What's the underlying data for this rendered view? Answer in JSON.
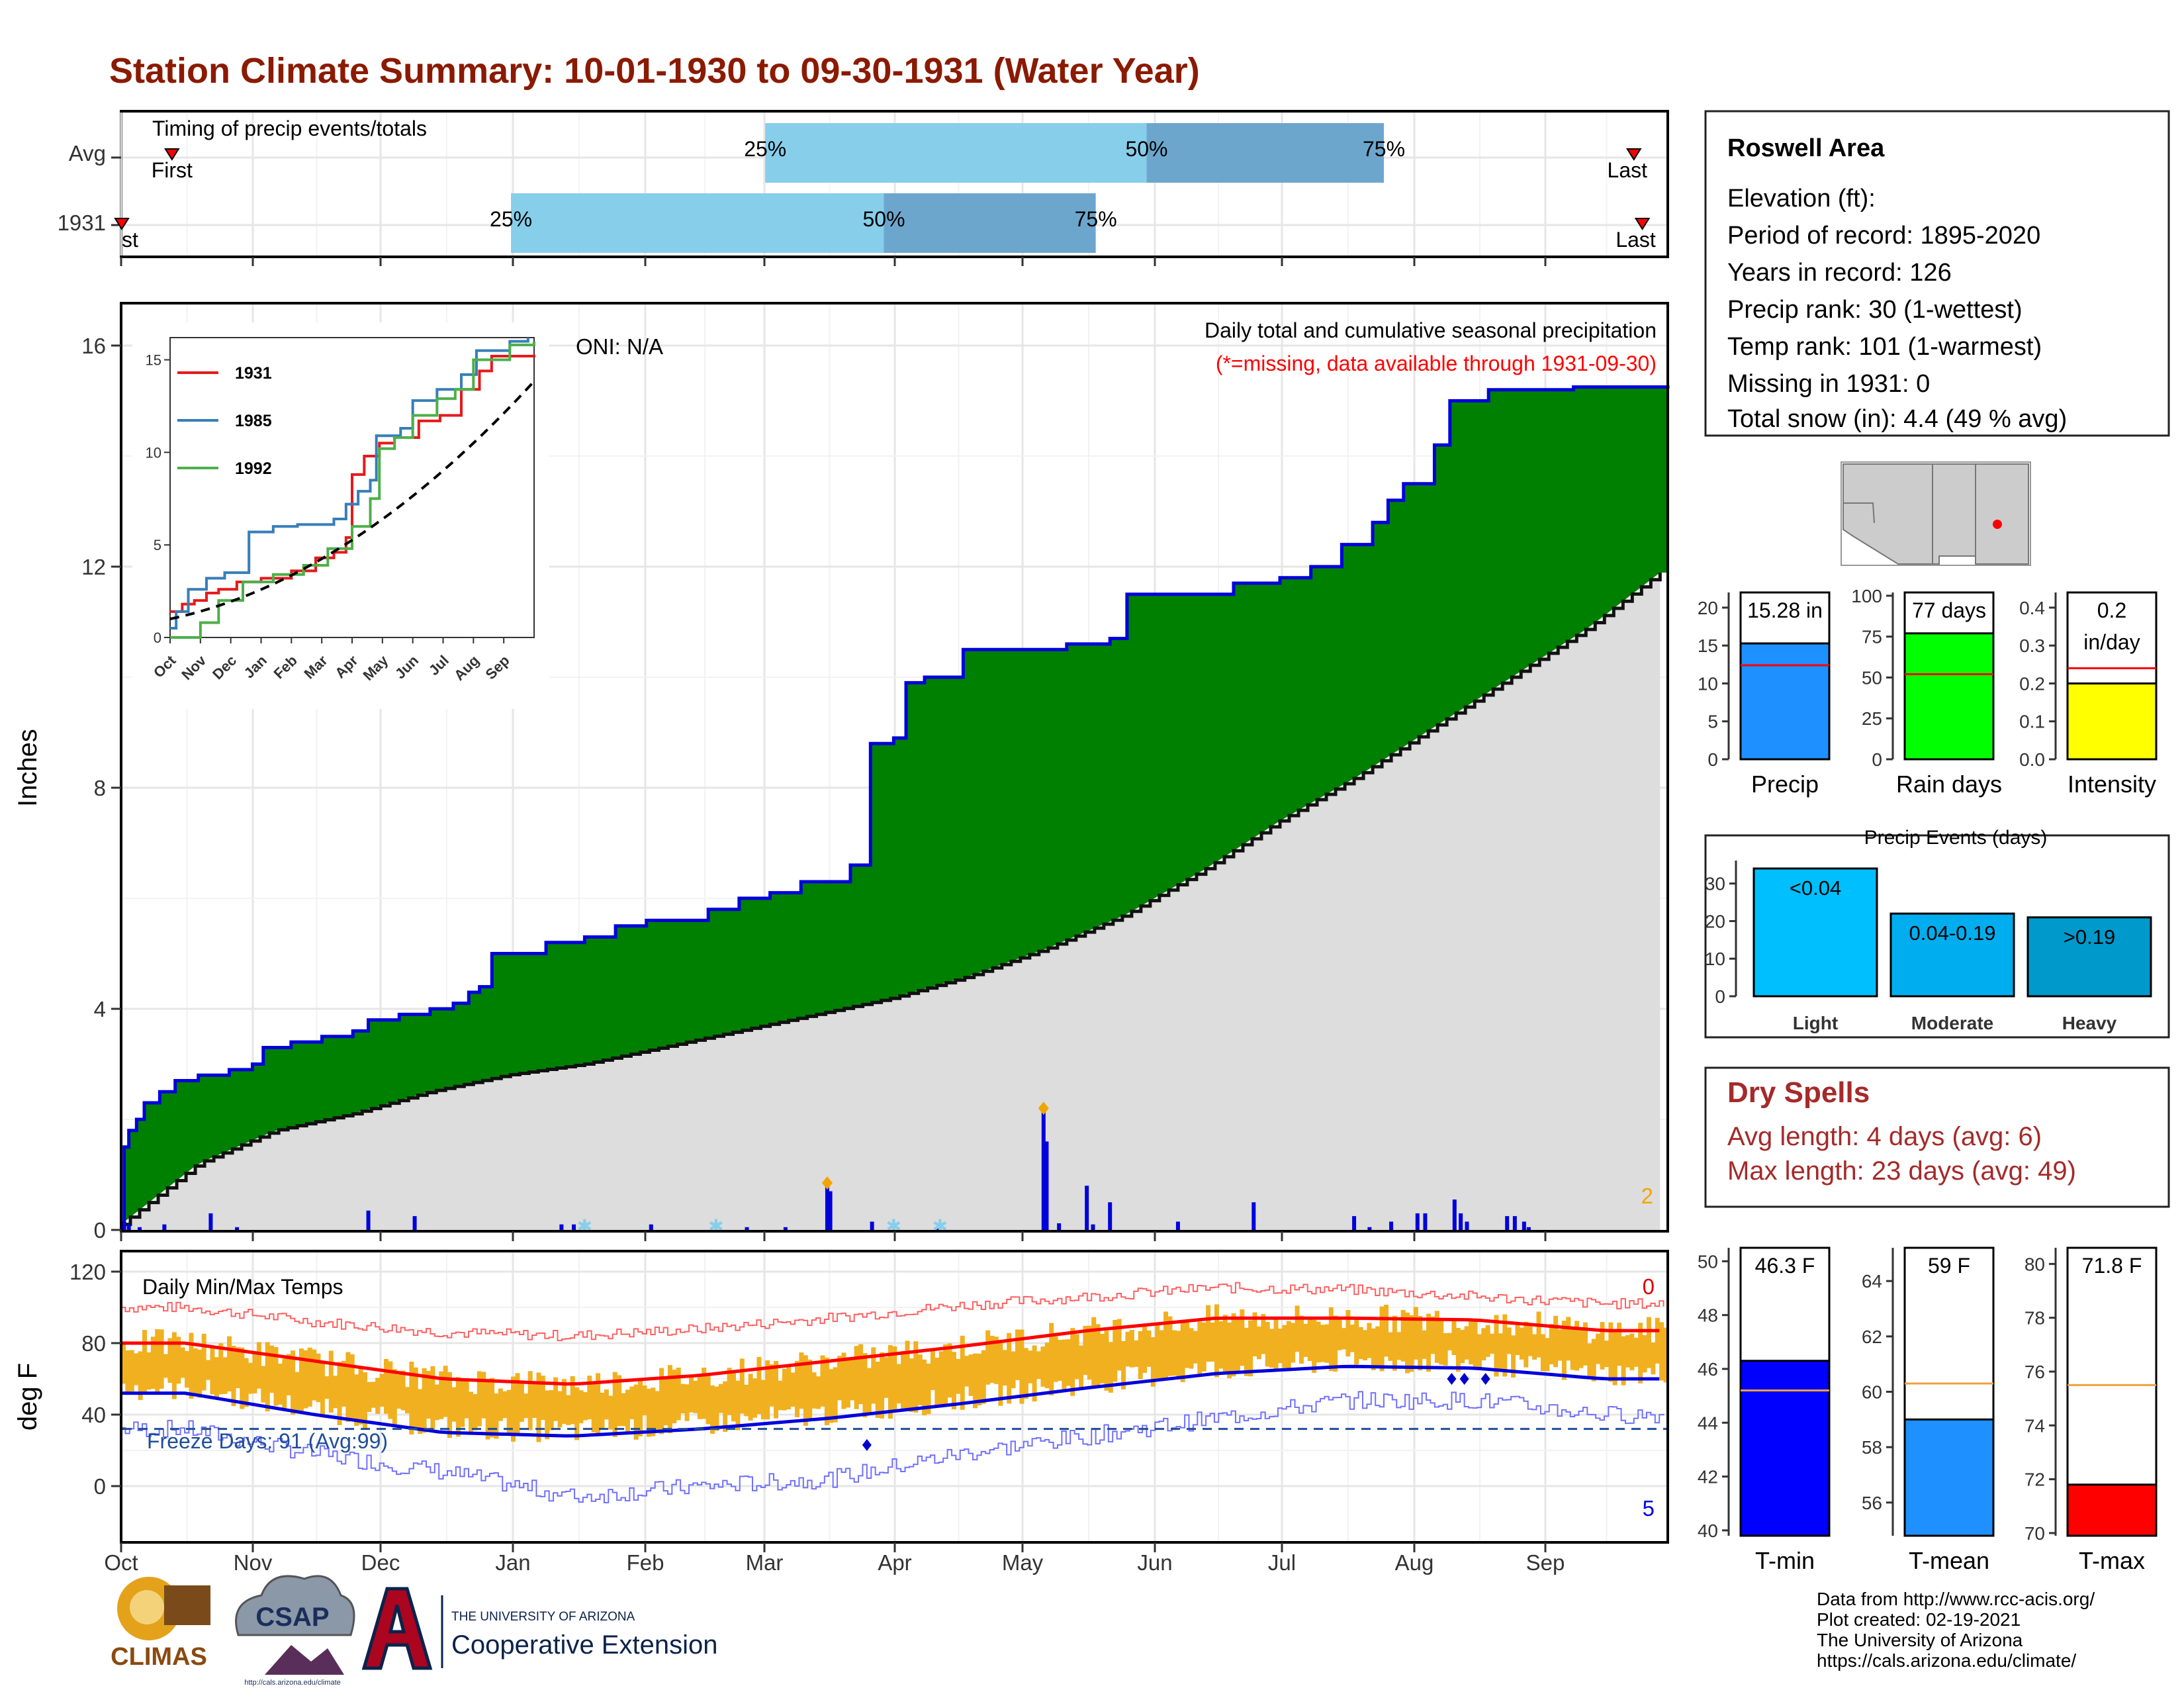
{
  "title": "Station Climate Summary: 10-01-1930 to 09-30-1931 (Water Year)",
  "colors": {
    "title": "#8B1A00",
    "light_blue": "#87CEEB",
    "mid_blue": "#6CA6CD",
    "green": "#008000",
    "gray_fill": "#DDDDDD",
    "dry_red": "#A52A2A",
    "orange": "#F0A500"
  },
  "timing": {
    "label": "Timing of precip events/totals",
    "rows": [
      {
        "name": "Avg",
        "first": "First",
        "last": "Last",
        "p25": "25%",
        "p50": "50%",
        "p75": "75%",
        "first_day": 12,
        "p25_day": 152,
        "p50_day": 242,
        "p75_day": 298,
        "last_day": 357
      },
      {
        "name": "1931",
        "first": "First",
        "last": "Last",
        "p25": "25%",
        "p50": "50%",
        "p75": "75%",
        "first_day": 0,
        "p25_day": 92,
        "p50_day": 180,
        "p75_day": 230,
        "last_day": 359
      }
    ]
  },
  "precip_panel": {
    "ylabel": "Inches",
    "yticks": [
      0,
      4,
      8,
      12,
      16
    ],
    "oni": "ONI: N/A",
    "legend_title": "Daily total and cumulative seasonal precipitation",
    "missing_note": "(*=missing, data available through 1931-09-30)",
    "corner_value": "2"
  },
  "inset": {
    "yticks": [
      "0",
      "5",
      "10",
      "15"
    ],
    "months": [
      "Oct",
      "Nov",
      "Dec",
      "Jan",
      "Feb",
      "Mar",
      "Apr",
      "May",
      "Jun",
      "Jul",
      "Aug",
      "Sep"
    ],
    "series": [
      {
        "name": "1931",
        "color": "#E41A1C"
      },
      {
        "name": "1985",
        "color": "#377EB8"
      },
      {
        "name": "1992",
        "color": "#4DAF4A"
      }
    ]
  },
  "temp_panel": {
    "ylabel": "deg F",
    "yticks": [
      0,
      40,
      80,
      120
    ],
    "label": "Daily Min/Max Temps",
    "freeze": "Freeze Days: 91 (Avg:99)",
    "top_right": "0",
    "bottom_right": "5"
  },
  "months": [
    "Oct",
    "Nov",
    "Dec",
    "Jan",
    "Feb",
    "Mar",
    "Apr",
    "May",
    "Jun",
    "Jul",
    "Aug",
    "Sep"
  ],
  "chart_data": {
    "type": "area",
    "x_unit": "water-year day (Oct 1 = 0)",
    "cumulative_1931": [
      [
        0,
        0.0
      ],
      [
        2,
        1.5
      ],
      [
        5,
        1.8
      ],
      [
        10,
        2.0
      ],
      [
        15,
        2.3
      ],
      [
        25,
        2.5
      ],
      [
        35,
        2.7
      ],
      [
        50,
        2.8
      ],
      [
        70,
        2.9
      ],
      [
        85,
        3.0
      ],
      [
        92,
        3.3
      ],
      [
        110,
        3.4
      ],
      [
        130,
        3.5
      ],
      [
        150,
        3.6
      ],
      [
        160,
        3.8
      ],
      [
        180,
        3.9
      ],
      [
        200,
        4.0
      ],
      [
        215,
        4.1
      ],
      [
        225,
        4.3
      ],
      [
        232,
        4.4
      ],
      [
        240,
        5.0
      ],
      [
        275,
        5.2
      ],
      [
        300,
        5.3
      ],
      [
        320,
        5.5
      ],
      [
        340,
        5.6
      ],
      [
        365,
        5.6
      ],
      [
        380,
        5.8
      ],
      [
        400,
        6.0
      ],
      [
        420,
        6.1
      ],
      [
        440,
        6.3
      ],
      [
        460,
        6.3
      ],
      [
        472,
        6.6
      ],
      [
        485,
        8.8
      ],
      [
        500,
        8.9
      ],
      [
        508,
        9.9
      ],
      [
        520,
        10.0
      ],
      [
        545,
        10.5
      ],
      [
        560,
        10.5
      ],
      [
        590,
        10.5
      ],
      [
        612,
        10.6
      ],
      [
        630,
        10.6
      ],
      [
        640,
        10.7
      ],
      [
        651,
        11.5
      ],
      [
        690,
        11.5
      ],
      [
        720,
        11.7
      ],
      [
        750,
        11.8
      ],
      [
        770,
        12.0
      ],
      [
        790,
        12.4
      ],
      [
        810,
        12.8
      ],
      [
        820,
        13.2
      ],
      [
        830,
        13.5
      ],
      [
        850,
        14.2
      ],
      [
        860,
        15.0
      ],
      [
        885,
        15.2
      ],
      [
        940,
        15.25
      ],
      [
        1001,
        15.28
      ]
    ],
    "average_cumulative": [
      [
        0,
        0.1
      ],
      [
        50,
        1.2
      ],
      [
        100,
        1.8
      ],
      [
        150,
        2.1
      ],
      [
        200,
        2.5
      ],
      [
        250,
        2.8
      ],
      [
        300,
        3.0
      ],
      [
        350,
        3.3
      ],
      [
        400,
        3.6
      ],
      [
        450,
        3.9
      ],
      [
        500,
        4.2
      ],
      [
        550,
        4.6
      ],
      [
        600,
        5.1
      ],
      [
        650,
        5.7
      ],
      [
        700,
        6.5
      ],
      [
        750,
        7.4
      ],
      [
        800,
        8.2
      ],
      [
        850,
        9.1
      ],
      [
        900,
        10.0
      ],
      [
        950,
        10.9
      ],
      [
        1001,
        12.0
      ]
    ],
    "daily_precip_bars": [
      [
        2,
        0.15
      ],
      [
        5,
        0.1
      ],
      [
        12,
        0.05
      ],
      [
        28,
        0.1
      ],
      [
        58,
        0.3
      ],
      [
        75,
        0.05
      ],
      [
        160,
        0.35
      ],
      [
        190,
        0.25
      ],
      [
        285,
        0.1
      ],
      [
        293,
        0.1
      ],
      [
        343,
        0.1
      ],
      [
        405,
        0.05
      ],
      [
        430,
        0.05
      ],
      [
        457,
        0.85
      ],
      [
        459,
        0.7
      ],
      [
        486,
        0.15
      ],
      [
        529,
        0.05
      ],
      [
        597,
        2.2
      ],
      [
        599,
        1.6
      ],
      [
        607,
        0.12
      ],
      [
        625,
        0.8
      ],
      [
        629,
        0.1
      ],
      [
        640,
        0.5
      ],
      [
        684,
        0.15
      ],
      [
        733,
        0.5
      ],
      [
        798,
        0.25
      ],
      [
        808,
        0.05
      ],
      [
        822,
        0.15
      ],
      [
        839,
        0.3
      ],
      [
        844,
        0.3
      ],
      [
        863,
        0.55
      ],
      [
        867,
        0.3
      ],
      [
        871,
        0.15
      ],
      [
        897,
        0.25
      ],
      [
        902,
        0.25
      ],
      [
        908,
        0.15
      ],
      [
        911,
        0.05
      ]
    ],
    "oct_mid_max_temp_F": [
      83,
      80,
      76,
      72,
      70,
      69,
      71,
      75,
      82,
      89,
      93,
      90
    ],
    "monthly_mean_max_temp_F": [
      80,
      70,
      60,
      57,
      62,
      70,
      78,
      87,
      94,
      94,
      93,
      87
    ],
    "monthly_mean_min_temp_F": [
      52,
      40,
      30,
      28,
      32,
      38,
      46,
      55,
      63,
      67,
      66,
      60
    ],
    "temp_bars_monthly_range_F": [
      [
        40,
        85
      ],
      [
        30,
        75
      ],
      [
        25,
        65
      ],
      [
        25,
        62
      ],
      [
        30,
        68
      ],
      [
        35,
        75
      ],
      [
        40,
        82
      ],
      [
        50,
        92
      ],
      [
        60,
        98
      ],
      [
        65,
        98
      ],
      [
        62,
        95
      ],
      [
        55,
        90
      ]
    ],
    "record_high_F": [
      100,
      92,
      86,
      84,
      88,
      94,
      101,
      106,
      111,
      110,
      106,
      102
    ],
    "record_low_F": [
      32,
      18,
      8,
      -6,
      0,
      4,
      18,
      28,
      38,
      48,
      48,
      40
    ],
    "freeze_threshold_F": 32
  },
  "station": {
    "name": "Roswell Area",
    "elevation": "Elevation (ft):",
    "period": "Period of record: 1895-2020",
    "years": "Years in record: 126",
    "precip_rank": "Precip rank: 30 (1-wettest)",
    "temp_rank": "Temp rank: 101 (1-warmest)",
    "missing": "Missing in 1931: 0",
    "snow": "Total snow (in): 4.4 (49 % avg)"
  },
  "bar_precip": {
    "label": "Precip",
    "value_text": "15.28 in",
    "value": 15.28,
    "avg": 12.4,
    "ticks": [
      "0",
      "5",
      "10",
      "15",
      "20"
    ],
    "max": 22,
    "color": "#1E90FF"
  },
  "bar_raindays": {
    "label": "Rain days",
    "value_text": "77 days",
    "value": 77,
    "avg": 52,
    "ticks": [
      "0",
      "25",
      "50",
      "75",
      "100"
    ],
    "max": 102,
    "color": "#00FF00"
  },
  "bar_intensity": {
    "label": "Intensity",
    "value_line1": "0.2",
    "value_line2": "in/day",
    "value": 0.2,
    "avg": 0.24,
    "ticks": [
      "0.0",
      "0.1",
      "0.2",
      "0.3",
      "0.4"
    ],
    "max": 0.44,
    "color": "#FFFF00"
  },
  "events": {
    "title": "Precip Events (days)",
    "ticks": [
      "0",
      "10",
      "20",
      "30"
    ],
    "bars": [
      {
        "name": "Light",
        "label": "<0.04",
        "value": 34,
        "color": "#00BFFF"
      },
      {
        "name": "Moderate",
        "label": "0.04-0.19",
        "value": 22,
        "color": "#00AEEF"
      },
      {
        "name": "Heavy",
        "label": ">0.19",
        "value": 21,
        "color": "#0099CC"
      }
    ]
  },
  "dry_spells": {
    "title": "Dry Spells",
    "avg": "Avg length: 4 days (avg: 6)",
    "max": "Max length: 23 days (avg: 49)"
  },
  "tmin": {
    "label": "T-min",
    "value_text": "46.3 F",
    "value": 46.3,
    "avg": 45.2,
    "ticks": [
      "40",
      "42",
      "44",
      "46",
      "48",
      "50"
    ],
    "min": 39.8,
    "max": 50.5,
    "color": "#0000FF"
  },
  "tmean": {
    "label": "T-mean",
    "value_text": "59 F",
    "value": 59,
    "avg": 60.3,
    "ticks": [
      "56",
      "58",
      "60",
      "62",
      "64"
    ],
    "min": 54.8,
    "max": 65.2,
    "color": "#1E90FF"
  },
  "tmax": {
    "label": "T-max",
    "value_text": "71.8 F",
    "value": 71.8,
    "avg": 75.5,
    "ticks": [
      "70",
      "72",
      "74",
      "76",
      "78",
      "80"
    ],
    "min": 69.9,
    "max": 80.6,
    "color": "#FF0000"
  },
  "footer": {
    "line1": "Data from http://www.rcc-acis.org/",
    "line2": "Plot created: 02-19-2021",
    "line3": "The University of Arizona",
    "line4": "https://cals.arizona.edu/climate/"
  },
  "logos": {
    "climas": "CLIMAS",
    "csap": "CSAP",
    "csap_url": "http://cals.arizona.edu/climate",
    "ua": "THE UNIVERSITY OF ARIZONA",
    "coop": "Cooperative Extension"
  }
}
